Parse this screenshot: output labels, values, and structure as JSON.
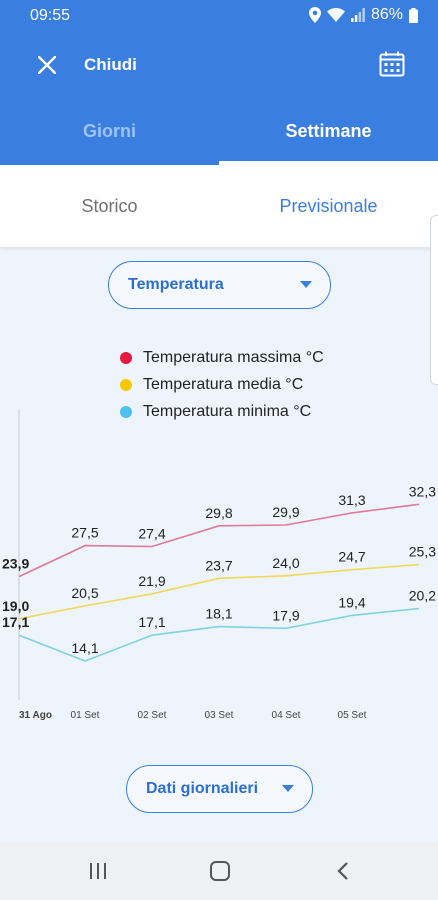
{
  "status_bar": {
    "time": "09:55",
    "battery": "86%"
  },
  "app_bar": {
    "title": "Chiudi",
    "close_icon": "close-icon",
    "calendar_icon": "calendar-icon"
  },
  "tabs": [
    {
      "label": "Giorni",
      "active": false
    },
    {
      "label": "Settimane",
      "active": true
    }
  ],
  "sub_tabs": [
    {
      "label": "Storico",
      "active": false
    },
    {
      "label": "Previsionale",
      "active": true
    }
  ],
  "metric_selector": {
    "label": "Temperatura"
  },
  "data_selector": {
    "label": "Dati giornalieri"
  },
  "colors": {
    "primary": "#3a7fe0",
    "max": "#e8173f",
    "mean": "#f7c800",
    "min": "#4cc3ee",
    "max_line": "#e07896",
    "mean_line": "#f2d85a",
    "min_line": "#7dd3e3"
  },
  "chart_data": {
    "type": "line",
    "categories": [
      "31 Ago",
      "01 Set",
      "02 Set",
      "03 Set",
      "04 Set",
      "05 Set",
      ""
    ],
    "series": [
      {
        "name": "Temperatura massima °C",
        "values": [
          23.9,
          27.5,
          27.4,
          29.8,
          29.9,
          31.3,
          32.3
        ],
        "labels": [
          "23,9",
          "27,5",
          "27,4",
          "29,8",
          "29,9",
          "31,3",
          "32,3"
        ]
      },
      {
        "name": "Temperatura media °C",
        "values": [
          19.0,
          20.5,
          21.9,
          23.7,
          24.0,
          24.7,
          25.3
        ],
        "labels": [
          "19,0",
          "20,5",
          "21,9",
          "23,7",
          "24,0",
          "24,7",
          "25,3"
        ]
      },
      {
        "name": "Temperatura minima °C",
        "values": [
          17.1,
          14.1,
          17.1,
          18.1,
          17.9,
          19.4,
          20.2
        ],
        "labels": [
          "17,1",
          "14,1",
          "17,1",
          "18,1",
          "17,9",
          "19,4",
          "20,2"
        ]
      }
    ],
    "legend_position": "top",
    "grid": false
  },
  "nav_bar": {
    "icons": [
      "recents-icon",
      "home-icon",
      "back-icon"
    ]
  }
}
